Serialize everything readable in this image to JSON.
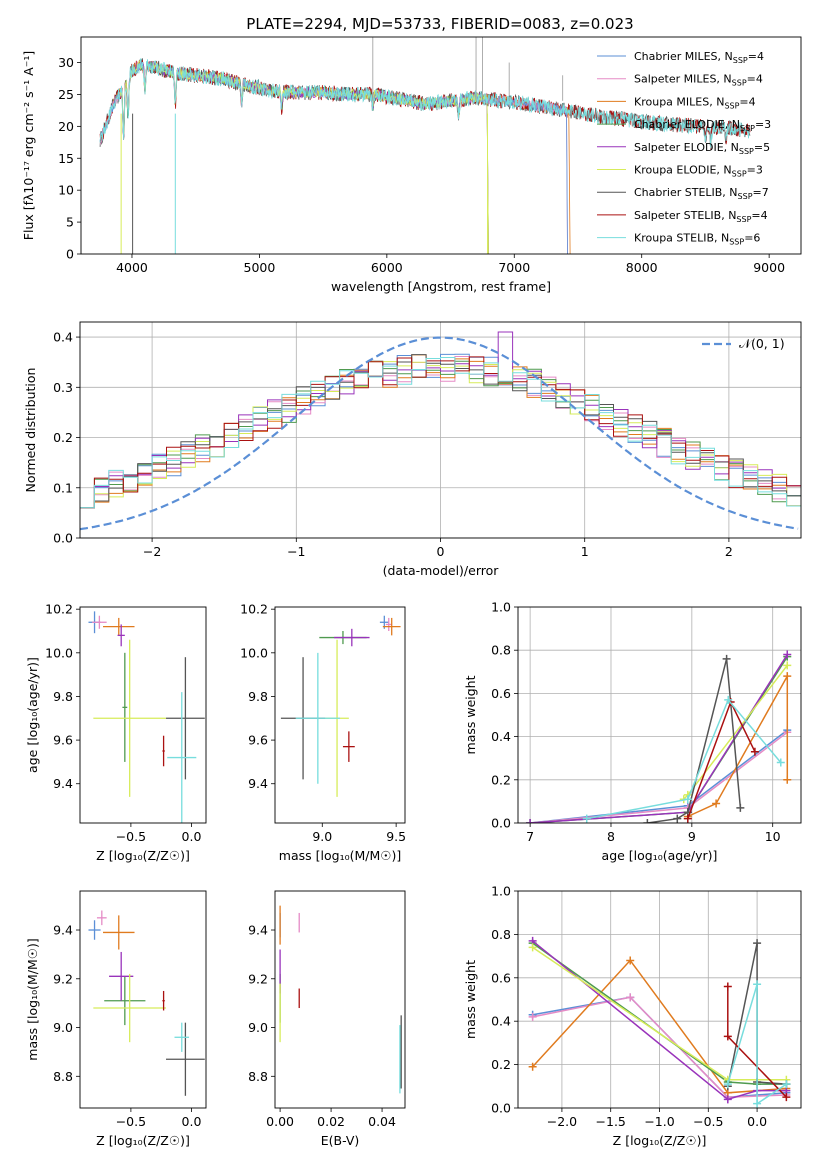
{
  "colors": {
    "chabrier_miles": "#5b8fd6",
    "salpeter_miles": "#e58bc6",
    "kroupa_miles": "#e07b1f",
    "chabrier_elodie": "#4f9a4f",
    "salpeter_elodie": "#9933bb",
    "kroupa_elodie": "#d7ec5a",
    "chabrier_stelib": "#555555",
    "salpeter_stelib": "#aa1111",
    "kroupa_stelib": "#77dddd",
    "gaussian": "#5b8fd6",
    "grid": "#b0b0b0"
  },
  "chart_data": [
    {
      "id": "spectrum",
      "type": "line",
      "title": "PLATE=2294, MJD=53733, FIBERID=0083, z=0.023",
      "xlabel": "wavelength [Angstrom, rest frame]",
      "ylabel": "Flux [fλ10⁻¹⁷ erg cm⁻² s⁻¹ A⁻¹]",
      "xlim": [
        3600,
        9250
      ],
      "ylim": [
        0,
        34
      ],
      "xticks": [
        "4000",
        "5000",
        "6000",
        "7000",
        "8000",
        "9000"
      ],
      "yticks": [
        "0",
        "5",
        "10",
        "15",
        "20",
        "25",
        "30"
      ],
      "legend_position": "top-right",
      "legend": [
        {
          "key": "chabrier_miles",
          "pre": "Chabrier MILES, N",
          "sub": "SSP",
          "post": "=4"
        },
        {
          "key": "salpeter_miles",
          "pre": "Salpeter MILES, N",
          "sub": "SSP",
          "post": "=4"
        },
        {
          "key": "kroupa_miles",
          "pre": "Kroupa MILES, N",
          "sub": "SSP",
          "post": "=4"
        },
        {
          "key": "chabrier_elodie",
          "pre": "Chabrier ELODIE, N",
          "sub": "SSP",
          "post": "=3"
        },
        {
          "key": "salpeter_elodie",
          "pre": "Salpeter ELODIE, N",
          "sub": "SSP",
          "post": "=5"
        },
        {
          "key": "kroupa_elodie",
          "pre": "Kroupa ELODIE, N",
          "sub": "SSP",
          "post": "=3"
        },
        {
          "key": "chabrier_stelib",
          "pre": "Chabrier STELIB, N",
          "sub": "SSP",
          "post": "=7"
        },
        {
          "key": "salpeter_stelib",
          "pre": "Salpeter STELIB, N",
          "sub": "SSP",
          "post": "=4"
        },
        {
          "key": "kroupa_stelib",
          "pre": "Kroupa STELIB, N",
          "sub": "SSP",
          "post": "=6"
        }
      ],
      "continuum": [
        [
          3750,
          24
        ],
        [
          3850,
          27
        ],
        [
          3950,
          28
        ],
        [
          4050,
          29.5
        ],
        [
          4150,
          29.5
        ],
        [
          4300,
          28.5
        ],
        [
          4500,
          28
        ],
        [
          4700,
          27.5
        ],
        [
          4900,
          26.5
        ],
        [
          5100,
          25.5
        ],
        [
          5300,
          25.3
        ],
        [
          5500,
          25.3
        ],
        [
          5700,
          25
        ],
        [
          5900,
          25
        ],
        [
          6100,
          24.3
        ],
        [
          6300,
          23.5
        ],
        [
          6500,
          24
        ],
        [
          6700,
          24.5
        ],
        [
          6900,
          24
        ],
        [
          7100,
          23.5
        ],
        [
          7300,
          22.8
        ],
        [
          7500,
          22.2
        ],
        [
          7700,
          21.5
        ],
        [
          7900,
          21
        ],
        [
          8100,
          20.5
        ],
        [
          8300,
          20.2
        ],
        [
          8500,
          20
        ],
        [
          8700,
          19.7
        ],
        [
          8850,
          19.3
        ]
      ],
      "series_ranges": [
        {
          "key": "chabrier_miles",
          "x": [
            3750,
            7410
          ]
        },
        {
          "key": "salpeter_miles",
          "x": [
            3750,
            7410
          ]
        },
        {
          "key": "kroupa_miles",
          "x": [
            3750,
            7430
          ]
        },
        {
          "key": "chabrier_elodie",
          "x": [
            3900,
            6790
          ]
        },
        {
          "key": "salpeter_elodie",
          "x": [
            3900,
            6790
          ]
        },
        {
          "key": "kroupa_elodie",
          "x": [
            3900,
            6790
          ]
        },
        {
          "key": "chabrier_stelib",
          "x": [
            3750,
            8850
          ]
        },
        {
          "key": "salpeter_stelib",
          "x": [
            3750,
            8850
          ]
        },
        {
          "key": "kroupa_stelib",
          "x": [
            3750,
            8850
          ]
        }
      ]
    },
    {
      "id": "residuals",
      "type": "histogram",
      "xlabel": "(data-model)/error",
      "ylabel": "Normed distribution",
      "xlim": [
        -2.5,
        2.5
      ],
      "ylim": [
        0,
        0.43
      ],
      "xticks": [
        "−2",
        "−1",
        "0",
        "1",
        "2"
      ],
      "yticks": [
        "0.0",
        "0.1",
        "0.2",
        "0.3",
        "0.4"
      ],
      "grid": true,
      "legend_position": "top-right",
      "gaussian_label": "𝒩(0, 1)",
      "bin_width": 0.1
    },
    {
      "id": "age_vs_Z",
      "type": "errorbar",
      "xlabel": "Z [log₁₀(Z/Z☉)]",
      "ylabel": "age  [log₁₀(age/yr)]",
      "xlim": [
        -0.92,
        0.12
      ],
      "ylim": [
        9.22,
        10.21
      ],
      "xticks": [
        "−0.5",
        "0.0"
      ],
      "yticks": [
        "9.4",
        "9.6",
        "9.8",
        "10.0",
        "10.2"
      ],
      "points": [
        {
          "key": "chabrier_miles",
          "x": -0.8,
          "xerr": 0.05,
          "y": 10.14,
          "yerr": 0.05
        },
        {
          "key": "salpeter_miles",
          "x": -0.76,
          "xerr": 0.06,
          "y": 10.14,
          "yerr": 0.03
        },
        {
          "key": "kroupa_miles",
          "x": -0.6,
          "xerr": 0.13,
          "y": 10.12,
          "yerr": 0.04
        },
        {
          "key": "chabrier_elodie",
          "x": -0.55,
          "xerr": 0.02,
          "y": 9.75,
          "yerr": 0.25
        },
        {
          "key": "salpeter_elodie",
          "x": -0.58,
          "xerr": 0.03,
          "y": 10.08,
          "yerr": 0.05
        },
        {
          "key": "kroupa_elodie",
          "x": -0.51,
          "xerr": 0.3,
          "y": 9.7,
          "yerr": 0.36
        },
        {
          "key": "chabrier_stelib",
          "x": -0.05,
          "xerr": 0.16,
          "y": 9.7,
          "yerr": 0.28
        },
        {
          "key": "salpeter_stelib",
          "x": -0.23,
          "xerr": 0.01,
          "y": 9.55,
          "yerr": 0.07
        },
        {
          "key": "kroupa_stelib",
          "x": -0.08,
          "xerr": 0.12,
          "y": 9.52,
          "yerr": 0.3
        }
      ]
    },
    {
      "id": "age_vs_mass",
      "type": "errorbar",
      "xlabel": "mass [log₁₀(M/M☉)]",
      "ylabel": "",
      "xlim": [
        8.68,
        9.56
      ],
      "ylim": [
        9.22,
        10.21
      ],
      "xticks": [
        "9.0",
        "9.5"
      ],
      "yticks": [
        "9.4",
        "9.6",
        "9.8",
        "10.0",
        "10.2"
      ],
      "points": [
        {
          "key": "chabrier_miles",
          "x": 9.42,
          "xerr": 0.03,
          "y": 10.14,
          "yerr": 0.03
        },
        {
          "key": "salpeter_miles",
          "x": 9.45,
          "xerr": 0.02,
          "y": 10.13,
          "yerr": 0.03
        },
        {
          "key": "kroupa_miles",
          "x": 9.47,
          "xerr": 0.06,
          "y": 10.12,
          "yerr": 0.04
        },
        {
          "key": "chabrier_elodie",
          "x": 9.14,
          "xerr": 0.16,
          "y": 10.07,
          "yerr": 0.03
        },
        {
          "key": "salpeter_elodie",
          "x": 9.2,
          "xerr": 0.12,
          "y": 10.07,
          "yerr": 0.04
        },
        {
          "key": "kroupa_elodie",
          "x": 9.1,
          "xerr": 0.08,
          "y": 9.7,
          "yerr": 0.36
        },
        {
          "key": "chabrier_stelib",
          "x": 8.87,
          "xerr": 0.15,
          "y": 9.7,
          "yerr": 0.28
        },
        {
          "key": "salpeter_stelib",
          "x": 9.18,
          "xerr": 0.04,
          "y": 9.57,
          "yerr": 0.07
        },
        {
          "key": "kroupa_stelib",
          "x": 8.97,
          "xerr": 0.15,
          "y": 9.7,
          "yerr": 0.3
        }
      ]
    },
    {
      "id": "mass_weight_vs_age",
      "type": "line",
      "xlabel": "age  [log₁₀(age/yr)]",
      "ylabel": "mass weight",
      "xlim": [
        6.85,
        10.35
      ],
      "ylim": [
        0,
        1.0
      ],
      "xticks": [
        "7",
        "8",
        "9",
        "10"
      ],
      "yticks": [
        "0.0",
        "0.2",
        "0.4",
        "0.6",
        "0.8",
        "1.0"
      ],
      "grid": true,
      "series": [
        {
          "key": "chabrier_miles",
          "x": [
            7.0,
            8.95,
            10.18
          ],
          "y": [
            0.0,
            0.08,
            0.43
          ]
        },
        {
          "key": "salpeter_miles",
          "x": [
            7.0,
            8.95,
            10.18
          ],
          "y": [
            0.0,
            0.07,
            0.42
          ]
        },
        {
          "key": "kroupa_miles",
          "x": [
            8.95,
            9.3,
            10.18,
            10.18
          ],
          "y": [
            0.03,
            0.09,
            0.68,
            0.2
          ]
        },
        {
          "key": "chabrier_elodie",
          "x": [
            7.0,
            8.95,
            10.18
          ],
          "y": [
            0.0,
            0.05,
            0.77
          ]
        },
        {
          "key": "salpeter_elodie",
          "x": [
            7.0,
            8.95,
            10.18
          ],
          "y": [
            0.0,
            0.05,
            0.78
          ]
        },
        {
          "key": "kroupa_elodie",
          "x": [
            8.9,
            8.95,
            10.18
          ],
          "y": [
            0.11,
            0.13,
            0.73
          ]
        },
        {
          "key": "chabrier_stelib",
          "x": [
            8.45,
            8.82,
            8.95,
            9.43,
            9.6
          ],
          "y": [
            0.0,
            0.02,
            0.05,
            0.76,
            0.07
          ]
        },
        {
          "key": "salpeter_stelib",
          "x": [
            8.95,
            9.48,
            9.78
          ],
          "y": [
            0.02,
            0.56,
            0.33
          ]
        },
        {
          "key": "kroupa_stelib",
          "x": [
            7.7,
            8.95,
            9.45,
            10.1
          ],
          "y": [
            0.02,
            0.11,
            0.57,
            0.28
          ]
        }
      ]
    },
    {
      "id": "mass_vs_Z",
      "type": "errorbar",
      "xlabel": "Z [log₁₀(Z/Z☉)]",
      "ylabel": "mass [log₁₀(M/M☉)]",
      "xlim": [
        -0.92,
        0.12
      ],
      "ylim": [
        8.67,
        9.56
      ],
      "xticks": [
        "−0.5",
        "0.0"
      ],
      "yticks": [
        "8.8",
        "9.0",
        "9.2",
        "9.4"
      ],
      "points": [
        {
          "key": "chabrier_miles",
          "x": -0.8,
          "xerr": 0.05,
          "y": 9.4,
          "yerr": 0.04
        },
        {
          "key": "salpeter_miles",
          "x": -0.74,
          "xerr": 0.04,
          "y": 9.45,
          "yerr": 0.03
        },
        {
          "key": "kroupa_miles",
          "x": -0.6,
          "xerr": 0.13,
          "y": 9.39,
          "yerr": 0.07
        },
        {
          "key": "chabrier_elodie",
          "x": -0.55,
          "xerr": 0.17,
          "y": 9.11,
          "yerr": 0.1
        },
        {
          "key": "salpeter_elodie",
          "x": -0.58,
          "xerr": 0.1,
          "y": 9.21,
          "yerr": 0.1
        },
        {
          "key": "kroupa_elodie",
          "x": -0.51,
          "xerr": 0.3,
          "y": 9.08,
          "yerr": 0.14
        },
        {
          "key": "chabrier_stelib",
          "x": -0.05,
          "xerr": 0.16,
          "y": 8.87,
          "yerr": 0.15
        },
        {
          "key": "salpeter_stelib",
          "x": -0.23,
          "xerr": 0.01,
          "y": 9.11,
          "yerr": 0.04
        },
        {
          "key": "kroupa_stelib",
          "x": -0.08,
          "xerr": 0.06,
          "y": 8.96,
          "yerr": 0.06
        }
      ]
    },
    {
      "id": "mass_vs_ebv",
      "type": "errorbar",
      "xlabel": "E(B-V)",
      "ylabel": "",
      "xlim": [
        -0.002,
        0.049
      ],
      "ylim": [
        8.67,
        9.56
      ],
      "xticks": [
        "0.00",
        "0.02",
        "0.04"
      ],
      "yticks": [
        "8.8",
        "9.0",
        "9.2",
        "9.4"
      ],
      "points": [
        {
          "key": "chabrier_miles",
          "x": 0.0,
          "xerr": 0.0,
          "y": 9.42,
          "yerr": 0.05
        },
        {
          "key": "salpeter_miles",
          "x": 0.0075,
          "xerr": 0.0,
          "y": 9.43,
          "yerr": 0.04
        },
        {
          "key": "kroupa_miles",
          "x": 0.0,
          "xerr": 0.0,
          "y": 9.42,
          "yerr": 0.08
        },
        {
          "key": "chabrier_elodie",
          "x": 0.0,
          "xerr": 0.0,
          "y": 9.12,
          "yerr": 0.1
        },
        {
          "key": "salpeter_elodie",
          "x": 0.0,
          "xerr": 0.0,
          "y": 9.23,
          "yerr": 0.09
        },
        {
          "key": "kroupa_elodie",
          "x": 0.0,
          "xerr": 0.0,
          "y": 9.06,
          "yerr": 0.12
        },
        {
          "key": "chabrier_stelib",
          "x": 0.0475,
          "xerr": 0.0,
          "y": 8.9,
          "yerr": 0.15
        },
        {
          "key": "salpeter_stelib",
          "x": 0.0075,
          "xerr": 0.0,
          "y": 9.12,
          "yerr": 0.04
        },
        {
          "key": "kroupa_stelib",
          "x": 0.047,
          "xerr": 0.0,
          "y": 8.87,
          "yerr": 0.14
        }
      ]
    },
    {
      "id": "mass_weight_vs_Z",
      "type": "line",
      "xlabel": "Z [log₁₀(Z/Z☉)]",
      "ylabel": "mass weight",
      "xlim": [
        -2.45,
        0.45
      ],
      "ylim": [
        0,
        1.0
      ],
      "xticks": [
        "−2.0",
        "−1.5",
        "−1.0",
        "−0.5",
        "0.0"
      ],
      "yticks": [
        "0.0",
        "0.2",
        "0.4",
        "0.6",
        "0.8",
        "1.0"
      ],
      "grid": true,
      "series": [
        {
          "key": "chabrier_miles",
          "x": [
            -2.3,
            -1.3,
            -0.3,
            0.3
          ],
          "y": [
            0.43,
            0.51,
            0.05,
            0.07
          ]
        },
        {
          "key": "salpeter_miles",
          "x": [
            -2.3,
            -1.3,
            -0.3,
            0.3
          ],
          "y": [
            0.42,
            0.51,
            0.05,
            0.06
          ]
        },
        {
          "key": "kroupa_miles",
          "x": [
            -2.3,
            -1.3,
            -0.3,
            0.3
          ],
          "y": [
            0.19,
            0.68,
            0.07,
            0.09
          ]
        },
        {
          "key": "chabrier_elodie",
          "x": [
            -2.3,
            -0.3,
            0.0,
            0.3
          ],
          "y": [
            0.76,
            0.12,
            0.11,
            0.11
          ]
        },
        {
          "key": "salpeter_elodie",
          "x": [
            -2.3,
            -0.3,
            0.0,
            0.3
          ],
          "y": [
            0.77,
            0.04,
            0.08,
            0.08
          ]
        },
        {
          "key": "kroupa_elodie",
          "x": [
            -2.3,
            -0.3,
            0.3
          ],
          "y": [
            0.74,
            0.13,
            0.13
          ]
        },
        {
          "key": "chabrier_stelib",
          "x": [
            -0.3,
            0.0,
            0.0,
            0.3
          ],
          "y": [
            0.1,
            0.76,
            0.12,
            0.11
          ]
        },
        {
          "key": "salpeter_stelib",
          "x": [
            -0.3,
            -0.3,
            0.3
          ],
          "y": [
            0.56,
            0.33,
            0.05
          ]
        },
        {
          "key": "kroupa_stelib",
          "x": [
            -0.3,
            0.0,
            0.0,
            0.3
          ],
          "y": [
            0.11,
            0.57,
            0.02,
            0.11
          ]
        }
      ]
    }
  ]
}
